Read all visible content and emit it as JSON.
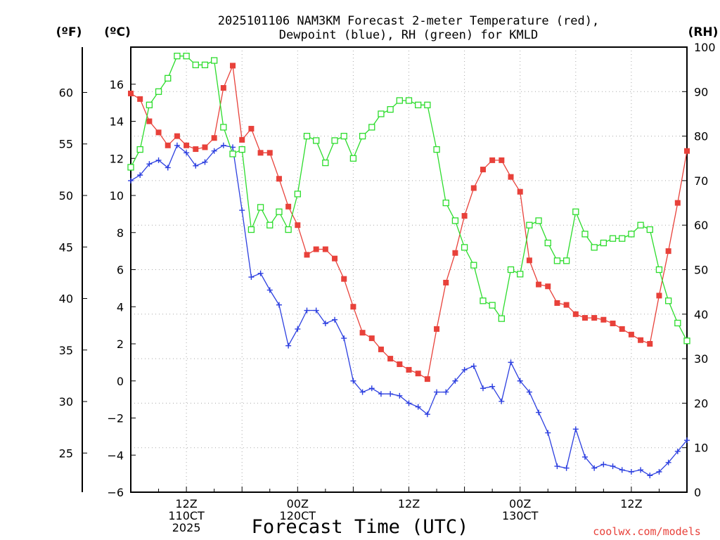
{
  "title_line1": "2025101106 NAM3KM Forecast 2-meter Temperature (red),",
  "title_line2": "Dewpoint (blue), RH (green) for KMLD",
  "units": {
    "left_outer": "(ºF)",
    "left_inner": "(ºC)",
    "right": "(RH)"
  },
  "x_axis_title": "Forecast Time (UTC)",
  "credit": "coolwx.com/models",
  "colors": {
    "temperature": "#e8413a",
    "dewpoint": "#2c3fe0",
    "rh": "#2cdc2c",
    "credit": "#e8413a"
  },
  "chart_data": {
    "type": "line",
    "title": "2025101106 NAM3KM Forecast 2-meter Temperature (red), Dewpoint (blue), RH (green) for KMLD",
    "xlabel": "Forecast Time (UTC)",
    "x_unit": "forecast hour",
    "xlim": [
      0,
      60
    ],
    "celsius_axis": {
      "label": "(ºC)",
      "ylim": [
        -6,
        18
      ],
      "ticks": [
        -6,
        -4,
        -2,
        0,
        2,
        4,
        6,
        8,
        10,
        12,
        14,
        16
      ]
    },
    "fahrenheit_axis": {
      "label": "(ºF)",
      "ticks": [
        25,
        30,
        35,
        40,
        45,
        50,
        55,
        60
      ]
    },
    "rh_axis": {
      "label": "(RH)",
      "ylim": [
        0,
        100
      ],
      "ticks": [
        0,
        10,
        20,
        30,
        40,
        50,
        60,
        70,
        80,
        90,
        100
      ]
    },
    "x_ticks": [
      {
        "hour": 6,
        "label": "12Z",
        "date": "110CT",
        "year": "2025"
      },
      {
        "hour": 18,
        "label": "00Z",
        "date": "120CT",
        "year": ""
      },
      {
        "hour": 30,
        "label": "12Z",
        "date": "",
        "year": ""
      },
      {
        "hour": 42,
        "label": "00Z",
        "date": "130CT",
        "year": ""
      },
      {
        "hour": 54,
        "label": "12Z",
        "date": "",
        "year": ""
      }
    ],
    "series": [
      {
        "name": "Temperature",
        "unit": "ºC",
        "axis": "celsius",
        "marker": "filled-square",
        "x": [
          0,
          1,
          2,
          3,
          4,
          5,
          6,
          7,
          8,
          9,
          10,
          11,
          12,
          13,
          14,
          15,
          16,
          17,
          18,
          19,
          20,
          21,
          22,
          23,
          24,
          25,
          26,
          27,
          28,
          29,
          30,
          31,
          32,
          33,
          34,
          35,
          36,
          37,
          38,
          39,
          40,
          41,
          42,
          43,
          44,
          45,
          46,
          47,
          48,
          49,
          50,
          51,
          52,
          53,
          54,
          55,
          56,
          57,
          58,
          59,
          60
        ],
        "values": [
          15.5,
          15.2,
          14.0,
          13.4,
          12.7,
          13.2,
          12.7,
          12.5,
          12.6,
          13.1,
          15.8,
          17.0,
          13.0,
          13.6,
          12.3,
          12.3,
          10.9,
          9.4,
          8.4,
          6.8,
          7.1,
          7.1,
          6.6,
          5.5,
          4.0,
          2.6,
          2.3,
          1.7,
          1.2,
          0.9,
          0.6,
          0.4,
          0.1,
          2.8,
          5.3,
          6.9,
          8.9,
          10.4,
          11.4,
          11.9,
          11.9,
          11.0,
          10.2,
          6.5,
          5.2,
          5.1,
          4.2,
          4.1,
          3.6,
          3.4,
          3.4,
          3.3,
          3.1,
          2.8,
          2.5,
          2.2,
          2.0,
          4.6,
          7.0,
          9.6,
          12.4
        ]
      },
      {
        "name": "Dewpoint",
        "unit": "ºC",
        "axis": "celsius",
        "marker": "plus",
        "x": [
          0,
          1,
          2,
          3,
          4,
          5,
          6,
          7,
          8,
          9,
          10,
          11,
          12,
          13,
          14,
          15,
          16,
          17,
          18,
          19,
          20,
          21,
          22,
          23,
          24,
          25,
          26,
          27,
          28,
          29,
          30,
          31,
          32,
          33,
          34,
          35,
          36,
          37,
          38,
          39,
          40,
          41,
          42,
          43,
          44,
          45,
          46,
          47,
          48,
          49,
          50,
          51,
          52,
          53,
          54,
          55,
          56,
          57,
          58,
          59,
          60
        ],
        "values": [
          10.8,
          11.1,
          11.7,
          11.9,
          11.5,
          12.7,
          12.3,
          11.6,
          11.8,
          12.4,
          12.7,
          12.6,
          9.2,
          5.6,
          5.8,
          4.9,
          4.1,
          1.9,
          2.8,
          3.8,
          3.8,
          3.1,
          3.3,
          2.3,
          0.0,
          -0.6,
          -0.4,
          -0.7,
          -0.7,
          -0.8,
          -1.2,
          -1.4,
          -1.8,
          -0.6,
          -0.6,
          0.0,
          0.6,
          0.8,
          -0.4,
          -0.3,
          -1.1,
          1.0,
          0.0,
          -0.6,
          -1.7,
          -2.8,
          -4.6,
          -4.7,
          -2.6,
          -4.1,
          -4.7,
          -4.5,
          -4.6,
          -4.8,
          -4.9,
          -4.8,
          -5.1,
          -4.9,
          -4.4,
          -3.8,
          -3.2
        ]
      },
      {
        "name": "RH",
        "unit": "%",
        "axis": "rh",
        "marker": "open-square",
        "x": [
          0,
          1,
          2,
          3,
          4,
          5,
          6,
          7,
          8,
          9,
          10,
          11,
          12,
          13,
          14,
          15,
          16,
          17,
          18,
          19,
          20,
          21,
          22,
          23,
          24,
          25,
          26,
          27,
          28,
          29,
          30,
          31,
          32,
          33,
          34,
          35,
          36,
          37,
          38,
          39,
          40,
          41,
          42,
          43,
          44,
          45,
          46,
          47,
          48,
          49,
          50,
          51,
          52,
          53,
          54,
          55,
          56,
          57,
          58,
          59,
          60
        ],
        "values": [
          73,
          77,
          87,
          90,
          93,
          98,
          98,
          96,
          96,
          97,
          82,
          76,
          77,
          59,
          64,
          60,
          63,
          59,
          67,
          80,
          79,
          74,
          79,
          80,
          75,
          80,
          82,
          85,
          86,
          88,
          88,
          87,
          87,
          77,
          65,
          61,
          55,
          51,
          43,
          42,
          39,
          50,
          49,
          60,
          61,
          56,
          52,
          52,
          63,
          58,
          55,
          56,
          57,
          57,
          58,
          60,
          59,
          50,
          43,
          38,
          34
        ]
      }
    ]
  }
}
